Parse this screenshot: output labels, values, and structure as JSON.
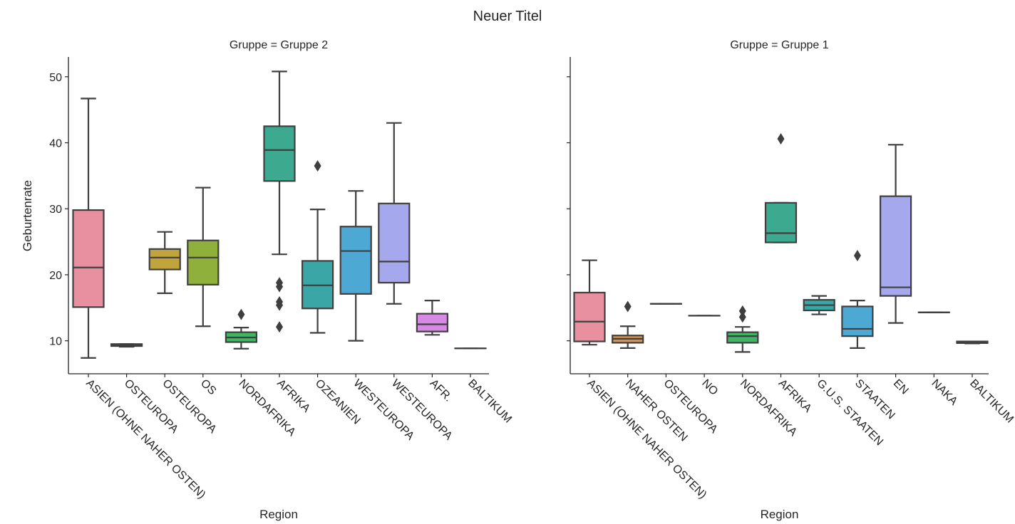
{
  "chart_data": {
    "type": "boxplot",
    "title": "Neuer Titel",
    "ylabel": "Geburtenrate",
    "xlabel": "Region",
    "ylim": [
      5,
      53
    ],
    "yticks": [
      10,
      20,
      30,
      40,
      50
    ],
    "grid": false,
    "facets": [
      {
        "title": "Gruppe = Gruppe 2",
        "categories": [
          "ASIEN (OHNE NAHER OSTEN)",
          "OSTEUROPA",
          "OSTEUROPA",
          "OS",
          "NORDAFRIKA",
          "AFRIKA",
          "OZEANIEN",
          "WESTEUROPA",
          "WESTEUROPA",
          "AFR.",
          "BALTIKUM"
        ],
        "boxes": [
          {
            "whislo": 7.4,
            "q1": 15.1,
            "med": 21.1,
            "q3": 29.8,
            "whishi": 46.7,
            "fliers": []
          },
          {
            "whislo": 9.1,
            "q1": 9.2,
            "med": 9.3,
            "q3": 9.5,
            "whishi": 9.5,
            "fliers": []
          },
          {
            "whislo": 17.2,
            "q1": 20.8,
            "med": 22.6,
            "q3": 23.9,
            "whishi": 26.5,
            "fliers": []
          },
          {
            "whislo": 12.2,
            "q1": 18.5,
            "med": 22.6,
            "q3": 25.2,
            "whishi": 33.2,
            "fliers": []
          },
          {
            "whislo": 8.8,
            "q1": 9.8,
            "med": 10.5,
            "q3": 11.3,
            "whishi": 12.0,
            "fliers": [
              14.0
            ]
          },
          {
            "whislo": 23.1,
            "q1": 34.2,
            "med": 38.9,
            "q3": 42.5,
            "whishi": 50.8,
            "fliers": [
              18.8,
              18.2,
              15.9,
              15.4,
              12.1
            ]
          },
          {
            "whislo": 11.2,
            "q1": 14.9,
            "med": 18.4,
            "q3": 22.1,
            "whishi": 29.9,
            "fliers": [
              36.5
            ]
          },
          {
            "whislo": 10.0,
            "q1": 17.1,
            "med": 23.6,
            "q3": 27.3,
            "whishi": 32.7,
            "fliers": []
          },
          {
            "whislo": 15.6,
            "q1": 18.8,
            "med": 22.0,
            "q3": 30.8,
            "whishi": 43.0,
            "fliers": []
          },
          {
            "whislo": 10.9,
            "q1": 11.4,
            "med": 12.5,
            "q3": 14.1,
            "whishi": 16.1,
            "fliers": []
          },
          {
            "whislo": 8.85,
            "q1": 8.85,
            "med": 8.85,
            "q3": 8.85,
            "whishi": 8.85,
            "fliers": []
          }
        ]
      },
      {
        "title": "Gruppe = Gruppe 1",
        "categories": [
          "ASIEN (OHNE NAHER OSTEN)",
          "NAHER OSTEN",
          "OSTEUROPA",
          "NO",
          "NORDAFRIKA",
          "AFRIKA",
          "G.U.S. STAATEN",
          "STAATEN",
          "EN",
          "NAKA",
          "BALTIKUM"
        ],
        "boxes": [
          {
            "whislo": 9.4,
            "q1": 9.9,
            "med": 12.9,
            "q3": 17.3,
            "whishi": 22.2,
            "fliers": []
          },
          {
            "whislo": 8.9,
            "q1": 9.7,
            "med": 10.3,
            "q3": 10.8,
            "whishi": 12.2,
            "fliers": [
              15.2
            ]
          },
          {
            "whislo": 15.6,
            "q1": 15.6,
            "med": 15.6,
            "q3": 15.6,
            "whishi": 15.6,
            "fliers": []
          },
          {
            "whislo": 13.8,
            "q1": 13.8,
            "med": 13.8,
            "q3": 13.8,
            "whishi": 13.8,
            "fliers": []
          },
          {
            "whislo": 8.3,
            "q1": 9.7,
            "med": 10.7,
            "q3": 11.3,
            "whishi": 12.1,
            "fliers": [
              14.5,
              13.6
            ]
          },
          {
            "whislo": 24.9,
            "q1": 24.9,
            "med": 26.3,
            "q3": 30.9,
            "whishi": 30.9,
            "fliers": [
              40.6
            ]
          },
          {
            "whislo": 14.0,
            "q1": 14.6,
            "med": 15.4,
            "q3": 16.2,
            "whishi": 16.8,
            "fliers": []
          },
          {
            "whislo": 8.9,
            "q1": 10.7,
            "med": 11.8,
            "q3": 15.2,
            "whishi": 16.1,
            "fliers": [
              22.9
            ]
          },
          {
            "whislo": 12.7,
            "q1": 16.8,
            "med": 18.1,
            "q3": 31.9,
            "whishi": 39.7,
            "fliers": []
          },
          {
            "whislo": 14.3,
            "q1": 14.3,
            "med": 14.3,
            "q3": 14.3,
            "whishi": 14.3,
            "fliers": []
          },
          {
            "whislo": 9.6,
            "q1": 9.65,
            "med": 9.75,
            "q3": 9.9,
            "whishi": 9.9,
            "fliers": []
          }
        ]
      }
    ],
    "colors": [
      "#e8909f",
      "#d8924a",
      "#c2a43c",
      "#90b03c",
      "#3fb663",
      "#3da98f",
      "#3aa7a6",
      "#4ea8d4",
      "#a5a8ed",
      "#d889e6",
      "#e67fb8"
    ]
  }
}
